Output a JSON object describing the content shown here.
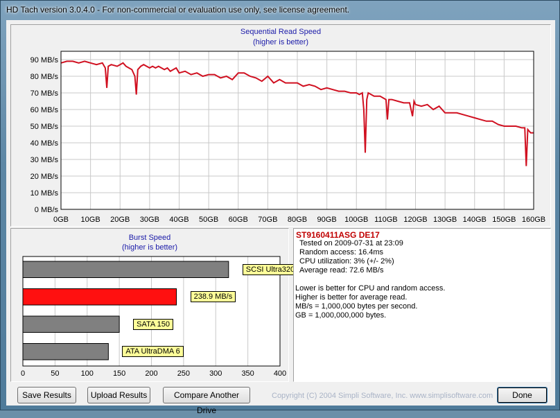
{
  "window": {
    "title": "HD Tach version 3.0.4.0  - For non-commercial or evaluation use only, see license agreement."
  },
  "sequential": {
    "title": "Sequential Read Speed",
    "subtitle": "(higher is better)"
  },
  "burst": {
    "title": "Burst Speed",
    "subtitle": "(higher is better)"
  },
  "info": {
    "drive_name": "ST9160411ASG DE17",
    "tested_on": "Tested on 2009-07-31 at 23:09",
    "random_access": "Random access: 16.4ms",
    "cpu": "CPU utilization: 3% (+/- 2%)",
    "avg_read": "Average read: 72.6 MB/s",
    "note1": "Lower is better for CPU and random access.",
    "note2": "Higher is better for average read.",
    "note3": "MB/s = 1,000,000 bytes per second.",
    "note4": "GB = 1,000,000,000 bytes."
  },
  "buttons": {
    "save": "Save Results",
    "upload": "Upload Results",
    "compare": "Compare Another Drive",
    "done": "Done"
  },
  "copyright": "Copyright (C) 2004 Simpli Software, Inc. www.simplisoftware.com",
  "colors": {
    "accent_red": "#d01020",
    "bar_red": "#ff1010",
    "bar_gray": "#808080",
    "title_blue": "#1a1aa8"
  },
  "chart_data": [
    {
      "type": "line",
      "title": "Sequential Read Speed",
      "subtitle": "(higher is better)",
      "x_ticks": [
        "0GB",
        "10GB",
        "20GB",
        "30GB",
        "40GB",
        "50GB",
        "60GB",
        "70GB",
        "80GB",
        "90GB",
        "100GB",
        "110GB",
        "120GB",
        "130GB",
        "140GB",
        "150GB",
        "160GB"
      ],
      "y_ticks": [
        "0 MB/s",
        "10 MB/s",
        "20 MB/s",
        "30 MB/s",
        "40 MB/s",
        "50 MB/s",
        "60 MB/s",
        "70 MB/s",
        "80 MB/s",
        "90 MB/s"
      ],
      "xlim": [
        0,
        160
      ],
      "ylim": [
        0,
        95
      ],
      "grid": true,
      "series": [
        {
          "x": [
            0,
            2,
            4,
            6,
            8,
            10,
            12,
            14,
            15,
            15.5,
            16,
            17,
            19,
            20,
            21,
            22,
            23,
            24,
            25,
            25.5,
            26,
            27,
            28,
            29,
            30,
            31,
            32,
            33,
            34,
            35,
            36,
            37,
            38,
            39,
            40,
            42,
            44,
            46,
            48,
            50,
            52,
            54,
            56,
            58,
            60,
            62,
            64,
            66,
            68,
            70,
            72,
            74,
            76,
            78,
            80,
            82,
            84,
            86,
            88,
            90,
            92,
            94,
            96,
            98,
            100,
            101,
            102,
            102.5,
            103,
            103.5,
            104,
            106,
            108,
            110,
            110.5,
            111,
            112,
            114,
            116,
            118,
            119,
            119.5,
            120,
            122,
            124,
            126,
            128,
            130,
            132,
            134,
            136,
            138,
            140,
            142,
            144,
            146,
            148,
            150,
            152,
            154,
            156,
            157,
            157.5,
            158,
            159,
            160
          ],
          "y": [
            88,
            89,
            89,
            88,
            89,
            88,
            87,
            88,
            85,
            73,
            86,
            87,
            86,
            87,
            88,
            86,
            85,
            84,
            80,
            69,
            84,
            86,
            87,
            86,
            85,
            86,
            85,
            86,
            85,
            84,
            85,
            83,
            84,
            85,
            82,
            83,
            81,
            82,
            80,
            81,
            81,
            79,
            80,
            78,
            82,
            82,
            80,
            79,
            77,
            80,
            76,
            78,
            76,
            76,
            76,
            74,
            75,
            74,
            72,
            73,
            72,
            71,
            71,
            70,
            70,
            69,
            70,
            60,
            34,
            66,
            70,
            68,
            68,
            66,
            54,
            66,
            66,
            65,
            64,
            64,
            56,
            65,
            63,
            62,
            63,
            60,
            62,
            58,
            58,
            58,
            57,
            56,
            55,
            54,
            53,
            53,
            51,
            50,
            50,
            50,
            49,
            49,
            26,
            48,
            46,
            46
          ]
        }
      ]
    },
    {
      "type": "bar",
      "title": "Burst Speed",
      "subtitle": "(higher is better)",
      "orientation": "horizontal",
      "categories": [
        "SCSI Ultra320",
        "238.9 MB/s",
        "SATA 150",
        "ATA UltraDMA 6"
      ],
      "values": [
        320,
        238.9,
        150,
        133
      ],
      "colors": [
        "#808080",
        "#ff1010",
        "#808080",
        "#808080"
      ],
      "x_ticks": [
        "0",
        "50",
        "100",
        "150",
        "200",
        "250",
        "300",
        "350",
        "400"
      ],
      "xlim": [
        0,
        400
      ],
      "grid": true
    }
  ]
}
